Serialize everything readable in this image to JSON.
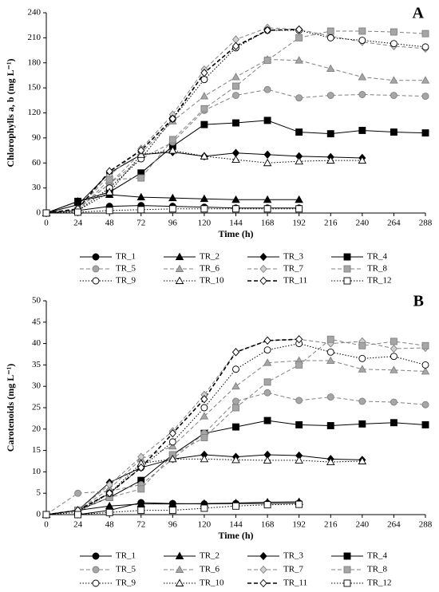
{
  "chart_data": [
    {
      "type": "line",
      "panel_label": "A",
      "ylabel": "Chlorophylls a, b (mg L⁻¹)",
      "xlabel": "Time (h)",
      "x": [
        0,
        24,
        48,
        72,
        96,
        120,
        144,
        168,
        192,
        216,
        240,
        264,
        288
      ],
      "xlim": [
        0,
        288
      ],
      "xticks": [
        0,
        24,
        48,
        72,
        96,
        120,
        144,
        168,
        192,
        216,
        240,
        264,
        288
      ],
      "ylim": [
        0,
        240
      ],
      "yticks": [
        0,
        30,
        60,
        90,
        120,
        150,
        180,
        210,
        240
      ],
      "series": [
        {
          "name": "TR_1",
          "color": "#000000",
          "fill": "#000000",
          "marker": "circle",
          "dash": "solid",
          "values": [
            0,
            3,
            8,
            9,
            8,
            7,
            6,
            6,
            6,
            null,
            null,
            null,
            null
          ]
        },
        {
          "name": "TR_2",
          "color": "#000000",
          "fill": "#000000",
          "marker": "triangle",
          "dash": "solid",
          "values": [
            0,
            14,
            22,
            19,
            18,
            17,
            16,
            16,
            16,
            null,
            null,
            null,
            null
          ]
        },
        {
          "name": "TR_3",
          "color": "#000000",
          "fill": "#000000",
          "marker": "diamond",
          "dash": "solid",
          "values": [
            0,
            10,
            48,
            70,
            73,
            68,
            72,
            70,
            68,
            67,
            66,
            null,
            null
          ]
        },
        {
          "name": "TR_4",
          "color": "#000000",
          "fill": "#000000",
          "marker": "square",
          "dash": "solid",
          "values": [
            0,
            14,
            25,
            48,
            80,
            106,
            108,
            111,
            97,
            95,
            99,
            97,
            96
          ]
        },
        {
          "name": "TR_5",
          "color": "#808080",
          "fill": "#a6a6a6",
          "marker": "circle",
          "dash": "dashed",
          "values": [
            0,
            5,
            35,
            65,
            85,
            123,
            141,
            148,
            138,
            141,
            142,
            141,
            140
          ]
        },
        {
          "name": "TR_6",
          "color": "#808080",
          "fill": "#a6a6a6",
          "marker": "triangle",
          "dash": "dashed",
          "values": [
            0,
            5,
            35,
            72,
            110,
            140,
            163,
            184,
            183,
            173,
            163,
            159,
            159
          ]
        },
        {
          "name": "TR_7",
          "color": "#808080",
          "fill": "#d0d0d0",
          "marker": "diamond",
          "dash": "dashed",
          "values": [
            0,
            5,
            45,
            77,
            118,
            172,
            208,
            222,
            220,
            212,
            205,
            200,
            197
          ]
        },
        {
          "name": "TR_8",
          "color": "#808080",
          "fill": "#a6a6a6",
          "marker": "square",
          "dash": "dashed",
          "values": [
            0,
            3,
            40,
            42,
            88,
            125,
            152,
            183,
            210,
            218,
            218,
            217,
            215
          ]
        },
        {
          "name": "TR_9",
          "color": "#000000",
          "fill": "#ffffff",
          "marker": "circle",
          "dash": "dotted",
          "values": [
            0,
            3,
            30,
            65,
            113,
            160,
            198,
            219,
            219,
            210,
            207,
            203,
            199
          ]
        },
        {
          "name": "TR_10",
          "color": "#000000",
          "fill": "#ffffff",
          "marker": "triangle",
          "dash": "dotted",
          "values": [
            0,
            3,
            25,
            70,
            75,
            68,
            64,
            60,
            62,
            63,
            63,
            null,
            null
          ]
        },
        {
          "name": "TR_11",
          "color": "#000000",
          "fill": "#ffffff",
          "marker": "diamond",
          "dash": "dashed",
          "values": [
            0,
            5,
            50,
            75,
            113,
            168,
            200,
            219,
            220,
            null,
            null,
            null,
            null
          ]
        },
        {
          "name": "TR_12",
          "color": "#000000",
          "fill": "#ffffff",
          "marker": "square",
          "dash": "dotted",
          "values": [
            0,
            1,
            3,
            4,
            5,
            5,
            5,
            5,
            5,
            null,
            null,
            null,
            null
          ]
        }
      ]
    },
    {
      "type": "line",
      "panel_label": "B",
      "ylabel": "Carotenoids (mg L⁻¹)",
      "xlabel": "Time (h)",
      "x": [
        0,
        24,
        48,
        72,
        96,
        120,
        144,
        168,
        192,
        216,
        240,
        264,
        288
      ],
      "xlim": [
        0,
        288
      ],
      "xticks": [
        0,
        24,
        48,
        72,
        96,
        120,
        144,
        168,
        192,
        216,
        240,
        264,
        288
      ],
      "ylim": [
        0,
        50
      ],
      "yticks": [
        0,
        5,
        10,
        15,
        20,
        25,
        30,
        35,
        40,
        45,
        50
      ],
      "series": [
        {
          "name": "TR_1",
          "color": "#000000",
          "fill": "#000000",
          "marker": "circle",
          "dash": "solid",
          "values": [
            0,
            0,
            1,
            2.8,
            2.6,
            2.5,
            2.6,
            2.6,
            2.7,
            null,
            null,
            null,
            null
          ]
        },
        {
          "name": "TR_2",
          "color": "#000000",
          "fill": "#000000",
          "marker": "triangle",
          "dash": "solid",
          "values": [
            0,
            1,
            2,
            2.5,
            2.5,
            2.6,
            2.7,
            2.9,
            3,
            null,
            null,
            null,
            null
          ]
        },
        {
          "name": "TR_3",
          "color": "#000000",
          "fill": "#000000",
          "marker": "diamond",
          "dash": "solid",
          "values": [
            0,
            1,
            7.5,
            11,
            13,
            14,
            13.5,
            14,
            13.8,
            13,
            12.8,
            null,
            null
          ]
        },
        {
          "name": "TR_4",
          "color": "#000000",
          "fill": "#000000",
          "marker": "square",
          "dash": "solid",
          "values": [
            0,
            1,
            4,
            8,
            14,
            19,
            20.5,
            22,
            21,
            20.8,
            21.2,
            21.5,
            21
          ]
        },
        {
          "name": "TR_5",
          "color": "#808080",
          "fill": "#a6a6a6",
          "marker": "circle",
          "dash": "dashed",
          "values": [
            0,
            5,
            5.5,
            7,
            13,
            19,
            26.5,
            28.5,
            26.7,
            27.5,
            26.5,
            26.3,
            25.7
          ]
        },
        {
          "name": "TR_6",
          "color": "#808080",
          "fill": "#a6a6a6",
          "marker": "triangle",
          "dash": "dashed",
          "values": [
            0,
            1,
            6,
            13,
            16,
            23,
            30,
            35.5,
            36,
            36,
            34,
            33.8,
            33.5
          ]
        },
        {
          "name": "TR_7",
          "color": "#808080",
          "fill": "#d0d0d0",
          "marker": "diamond",
          "dash": "dashed",
          "values": [
            0,
            1,
            7,
            13.5,
            19.5,
            28,
            38,
            40.7,
            41,
            40,
            40.5,
            38.8,
            39
          ]
        },
        {
          "name": "TR_8",
          "color": "#808080",
          "fill": "#a6a6a6",
          "marker": "square",
          "dash": "dashed",
          "values": [
            0,
            1,
            4,
            6,
            14,
            18,
            25,
            31,
            35,
            41,
            39.5,
            40.5,
            39.5
          ]
        },
        {
          "name": "TR_9",
          "color": "#000000",
          "fill": "#ffffff",
          "marker": "circle",
          "dash": "dotted",
          "values": [
            0,
            0.5,
            5,
            11,
            17,
            25,
            34,
            38.5,
            40,
            38,
            36.5,
            37,
            35
          ]
        },
        {
          "name": "TR_10",
          "color": "#000000",
          "fill": "#ffffff",
          "marker": "triangle",
          "dash": "dotted",
          "values": [
            0,
            1,
            5,
            12,
            13,
            13,
            12.8,
            12.7,
            12.7,
            12.3,
            12.5,
            null,
            null
          ]
        },
        {
          "name": "TR_11",
          "color": "#000000",
          "fill": "#ffffff",
          "marker": "diamond",
          "dash": "dashed",
          "values": [
            0,
            1,
            5,
            11,
            19,
            27,
            38,
            40.7,
            41,
            null,
            null,
            null,
            null
          ]
        },
        {
          "name": "TR_12",
          "color": "#000000",
          "fill": "#ffffff",
          "marker": "square",
          "dash": "dotted",
          "values": [
            0,
            0,
            0.5,
            1,
            1,
            1.5,
            2,
            2.3,
            2.4,
            null,
            null,
            null,
            null
          ]
        }
      ]
    }
  ]
}
